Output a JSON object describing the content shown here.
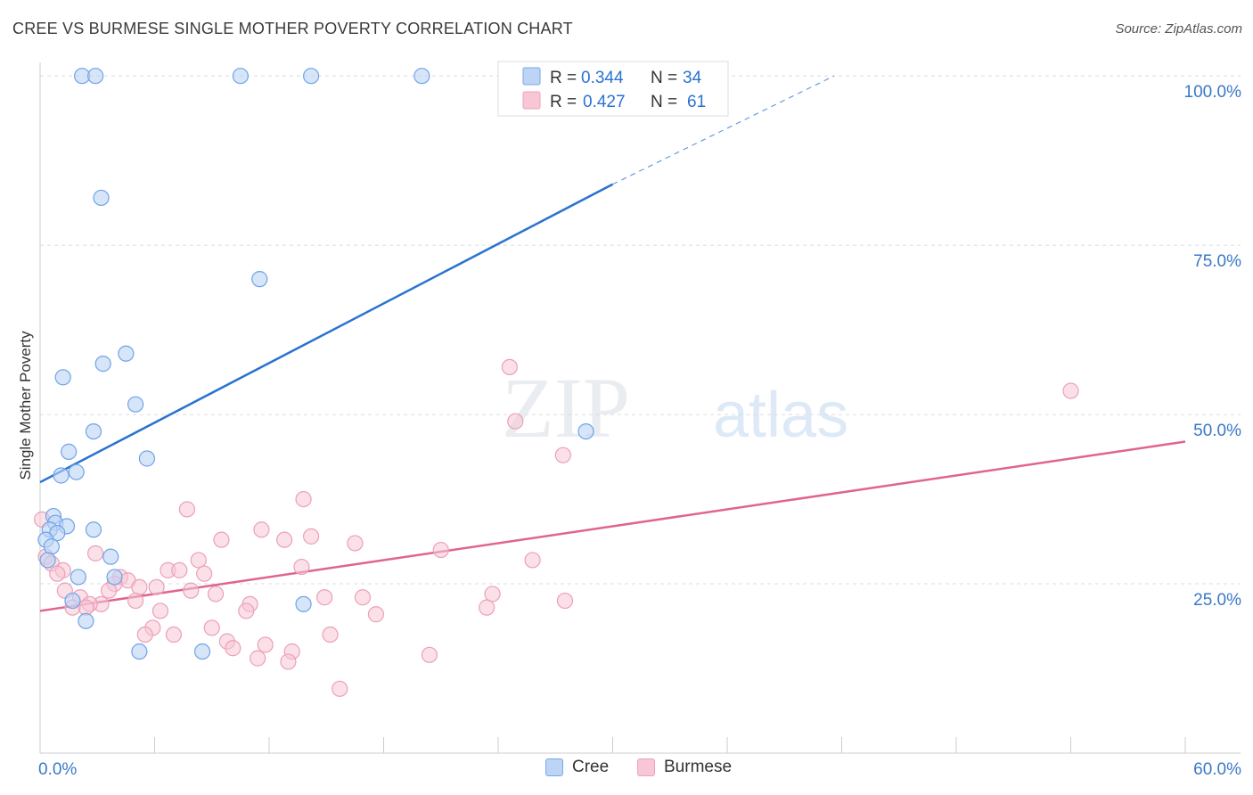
{
  "chart_data": {
    "type": "scatter",
    "title": "CREE VS BURMESE SINGLE MOTHER POVERTY CORRELATION CHART",
    "source": "Source: ZipAtlas.com",
    "ylabel": "Single Mother Poverty",
    "xlabel": "",
    "xlim": [
      0,
      60
    ],
    "ylim": [
      0,
      102
    ],
    "x_tick_labels": [
      "0.0%",
      "60.0%"
    ],
    "y_ticks": [
      25,
      50,
      75,
      100
    ],
    "y_tick_labels": [
      "25.0%",
      "50.0%",
      "75.0%",
      "100.0%"
    ],
    "grid": true,
    "watermark": "ZIPatlas",
    "colors": {
      "cree": "#6fa3e8",
      "cree_line": "#2a72d0",
      "burmese": "#f0a0ba",
      "burmese_line": "#e0648f",
      "tick_text": "#3a78c8"
    },
    "legend": [
      {
        "r_label": "R =",
        "r_value": "0.344",
        "n_label": "N =",
        "n_value": "34"
      },
      {
        "r_label": "R =",
        "r_value": "0.427",
        "n_label": "N =",
        "n_value": "61"
      }
    ],
    "series": [
      {
        "name": "Cree",
        "trend": {
          "x0": 0,
          "y0": 40,
          "x1": 30,
          "y1": 84,
          "dash_x1": 41.6,
          "dash_y1": 100
        },
        "points": [
          [
            2.2,
            100
          ],
          [
            2.9,
            100
          ],
          [
            10.5,
            100
          ],
          [
            14.2,
            100
          ],
          [
            20,
            100
          ],
          [
            3.2,
            82
          ],
          [
            11.5,
            70
          ],
          [
            4.5,
            59
          ],
          [
            3.3,
            57.5
          ],
          [
            1.2,
            55.5
          ],
          [
            5.0,
            51.5
          ],
          [
            2.8,
            47.5
          ],
          [
            28.6,
            47.5
          ],
          [
            1.5,
            44.5
          ],
          [
            5.6,
            43.5
          ],
          [
            1.9,
            41.5
          ],
          [
            1.1,
            41
          ],
          [
            0.7,
            35
          ],
          [
            0.8,
            34
          ],
          [
            1.4,
            33.5
          ],
          [
            2.8,
            33
          ],
          [
            0.5,
            33
          ],
          [
            0.9,
            32.5
          ],
          [
            0.3,
            31.5
          ],
          [
            0.6,
            30.5
          ],
          [
            0.4,
            28.5
          ],
          [
            3.7,
            29
          ],
          [
            2.0,
            26
          ],
          [
            3.9,
            26
          ],
          [
            13.8,
            22
          ],
          [
            1.7,
            22.5
          ],
          [
            2.4,
            19.5
          ],
          [
            5.2,
            15
          ],
          [
            8.5,
            15
          ]
        ]
      },
      {
        "name": "Burmese",
        "trend": {
          "x0": 0,
          "y0": 21,
          "x1": 60,
          "y1": 46
        },
        "points": [
          [
            24.6,
            57
          ],
          [
            54.0,
            53.5
          ],
          [
            24.9,
            49
          ],
          [
            27.4,
            44
          ],
          [
            13.8,
            37.5
          ],
          [
            7.7,
            36
          ],
          [
            0.1,
            34.5
          ],
          [
            11.6,
            33
          ],
          [
            14.2,
            32
          ],
          [
            9.5,
            31.5
          ],
          [
            12.8,
            31.5
          ],
          [
            16.5,
            31
          ],
          [
            21.0,
            30
          ],
          [
            2.9,
            29.5
          ],
          [
            0.3,
            29
          ],
          [
            0.6,
            28
          ],
          [
            8.3,
            28.5
          ],
          [
            25.8,
            28.5
          ],
          [
            13.7,
            27.5
          ],
          [
            1.2,
            27
          ],
          [
            0.9,
            26.5
          ],
          [
            6.7,
            27
          ],
          [
            7.3,
            27
          ],
          [
            8.6,
            26.5
          ],
          [
            4.2,
            26
          ],
          [
            4.6,
            25.5
          ],
          [
            3.9,
            25
          ],
          [
            5.2,
            24.5
          ],
          [
            6.1,
            24.5
          ],
          [
            1.3,
            24
          ],
          [
            3.6,
            24
          ],
          [
            7.9,
            24
          ],
          [
            9.2,
            23.5
          ],
          [
            23.7,
            23.5
          ],
          [
            14.9,
            23
          ],
          [
            16.9,
            23
          ],
          [
            2.1,
            23
          ],
          [
            27.5,
            22.5
          ],
          [
            5.0,
            22.5
          ],
          [
            3.2,
            22
          ],
          [
            11.0,
            22
          ],
          [
            2.6,
            22
          ],
          [
            2.4,
            21.5
          ],
          [
            1.7,
            21.5
          ],
          [
            6.3,
            21
          ],
          [
            10.8,
            21
          ],
          [
            17.6,
            20.5
          ],
          [
            23.4,
            21.5
          ],
          [
            9.0,
            18.5
          ],
          [
            5.9,
            18.5
          ],
          [
            7.0,
            17.5
          ],
          [
            5.5,
            17.5
          ],
          [
            15.2,
            17.5
          ],
          [
            9.8,
            16.5
          ],
          [
            10.1,
            15.5
          ],
          [
            11.8,
            16
          ],
          [
            13.2,
            15
          ],
          [
            11.4,
            14
          ],
          [
            13.0,
            13.5
          ],
          [
            20.4,
            14.5
          ],
          [
            15.7,
            9.5
          ]
        ]
      }
    ],
    "bottom_legend": [
      "Cree",
      "Burmese"
    ]
  }
}
